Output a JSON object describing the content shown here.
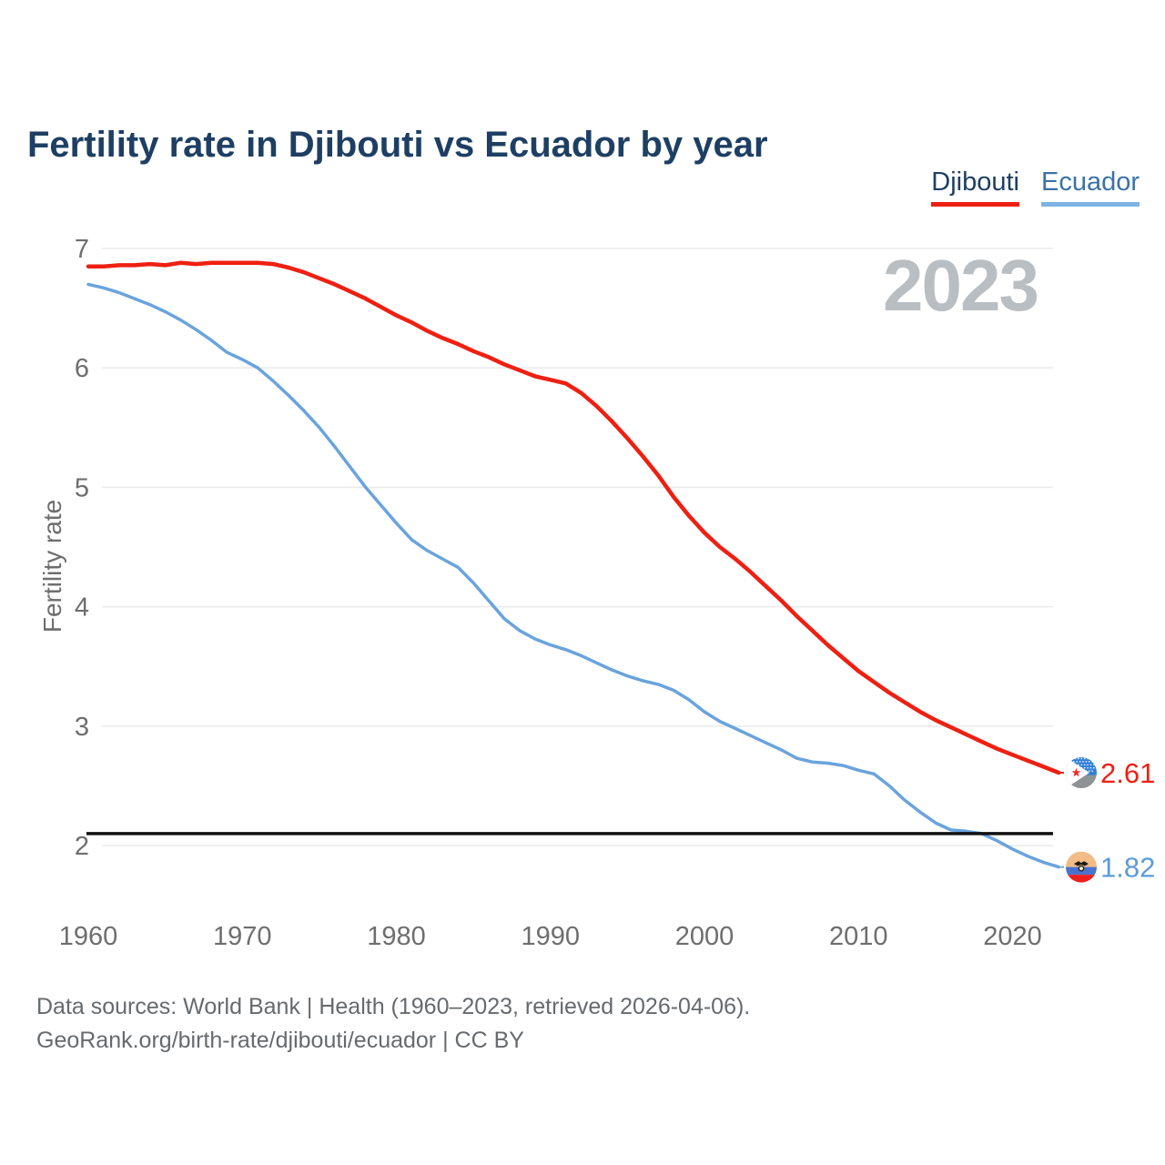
{
  "chart_data": {
    "type": "line",
    "title": "Fertility rate in Djibouti vs Ecuador by year",
    "ylabel": "Fertility rate",
    "xlabel": "",
    "watermark_year": "2023",
    "x_start": 1960,
    "x_end": 2023,
    "x_ticks": [
      1960,
      1970,
      1980,
      1990,
      2000,
      2010,
      2020
    ],
    "y_ticks": [
      2,
      3,
      4,
      5,
      6,
      7
    ],
    "ylim": [
      2,
      7
    ],
    "grid": "horizontal",
    "legend_position": "top-right",
    "reference_line": {
      "value": 2.1,
      "color": "#111111"
    },
    "series": [
      {
        "name": "Djibouti",
        "color": "#ee2012",
        "label_color": "#ee2012",
        "end_label": "2.61",
        "flag": "djibouti",
        "values": [
          6.85,
          6.85,
          6.86,
          6.86,
          6.87,
          6.86,
          6.88,
          6.87,
          6.88,
          6.88,
          6.88,
          6.88,
          6.87,
          6.84,
          6.8,
          6.75,
          6.7,
          6.64,
          6.58,
          6.51,
          6.44,
          6.38,
          6.31,
          6.25,
          6.2,
          6.14,
          6.09,
          6.03,
          5.98,
          5.93,
          5.9,
          5.87,
          5.79,
          5.68,
          5.55,
          5.41,
          5.26,
          5.1,
          4.92,
          4.76,
          4.62,
          4.5,
          4.4,
          4.29,
          4.17,
          4.05,
          3.92,
          3.8,
          3.68,
          3.57,
          3.46,
          3.37,
          3.28,
          3.2,
          3.12,
          3.05,
          2.99,
          2.93,
          2.87,
          2.81,
          2.76,
          2.71,
          2.66,
          2.61
        ]
      },
      {
        "name": "Ecuador",
        "color": "#6aa3dd",
        "label_color": "#5b9bd8",
        "end_label": "1.82",
        "flag": "ecuador",
        "values": [
          6.7,
          6.67,
          6.63,
          6.58,
          6.53,
          6.47,
          6.4,
          6.32,
          6.23,
          6.13,
          6.07,
          6.0,
          5.89,
          5.77,
          5.64,
          5.5,
          5.34,
          5.17,
          5.0,
          4.85,
          4.7,
          4.56,
          4.47,
          4.4,
          4.33,
          4.2,
          4.05,
          3.9,
          3.8,
          3.73,
          3.68,
          3.64,
          3.59,
          3.53,
          3.47,
          3.42,
          3.38,
          3.35,
          3.3,
          3.22,
          3.12,
          3.04,
          2.98,
          2.92,
          2.86,
          2.8,
          2.73,
          2.7,
          2.69,
          2.67,
          2.63,
          2.6,
          2.5,
          2.38,
          2.28,
          2.19,
          2.13,
          2.12,
          2.1,
          2.04,
          1.97,
          1.91,
          1.86,
          1.82
        ]
      }
    ],
    "axis_text_color": "#6e6e6e",
    "gridline_color": "#ebebeb"
  },
  "footer": {
    "sources_line": "Data sources: World Bank | Health (1960–2023, retrieved 2026-04-06).",
    "attribution_line": "GeoRank.org/birth-rate/djibouti/ecuador | CC BY"
  }
}
